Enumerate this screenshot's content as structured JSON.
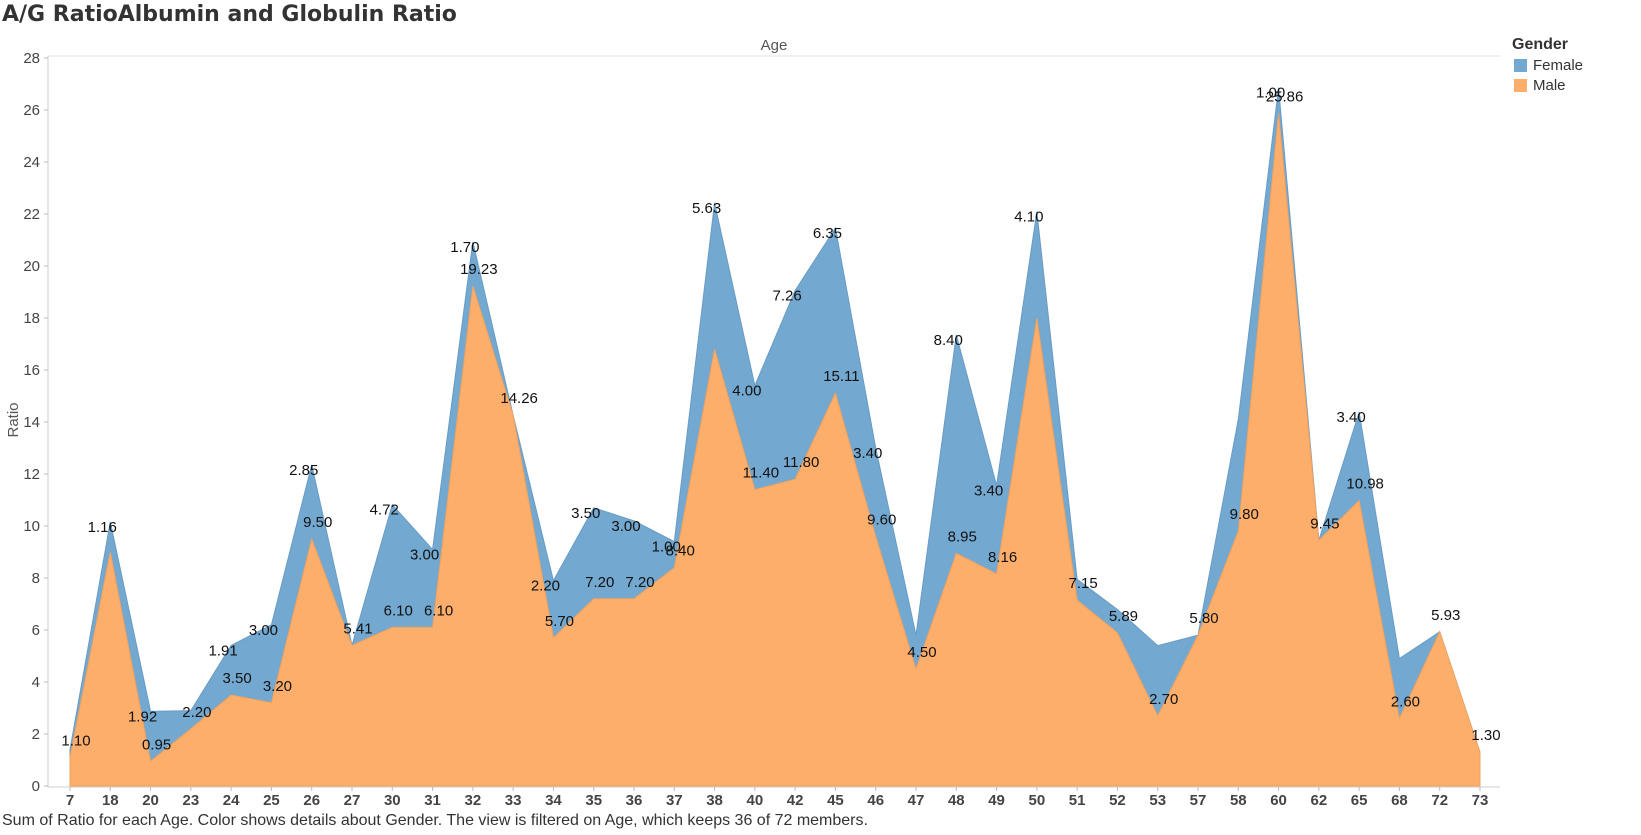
{
  "title": "A/G RatioAlbumin and Globulin Ratio",
  "caption": "Sum of Ratio for each Age.  Color shows details about Gender. The view is filtered on Age, which keeps 36 of 72 members.",
  "legend": {
    "title": "Gender",
    "items": [
      {
        "label": "Female",
        "color": "#73a8d0"
      },
      {
        "label": "Male",
        "color": "#fdae6b"
      }
    ]
  },
  "chart_data": {
    "type": "area",
    "stacked": true,
    "xlabel": "Age",
    "ylabel": "Ratio",
    "ylim": [
      0,
      28
    ],
    "yticks": [
      0,
      2,
      4,
      6,
      8,
      10,
      12,
      14,
      16,
      18,
      20,
      22,
      24,
      26,
      28
    ],
    "categories": [
      "7",
      "18",
      "20",
      "23",
      "24",
      "25",
      "26",
      "27",
      "30",
      "31",
      "32",
      "33",
      "34",
      "35",
      "36",
      "37",
      "38",
      "40",
      "42",
      "45",
      "46",
      "47",
      "48",
      "49",
      "50",
      "51",
      "52",
      "53",
      "57",
      "58",
      "60",
      "62",
      "65",
      "68",
      "72",
      "73"
    ],
    "series": [
      {
        "name": "Male",
        "values": [
          1.1,
          9.0,
          0.95,
          2.2,
          3.5,
          3.2,
          9.5,
          5.41,
          6.1,
          6.1,
          19.23,
          14.26,
          5.7,
          7.2,
          7.2,
          8.4,
          16.8,
          11.4,
          11.8,
          15.11,
          9.6,
          4.5,
          8.95,
          8.16,
          18.0,
          7.15,
          5.89,
          2.7,
          5.8,
          9.8,
          25.86,
          9.45,
          10.98,
          2.6,
          5.93,
          1.3
        ],
        "labels": [
          "1.10",
          "",
          "0.95",
          "2.20",
          "3.50",
          "3.20",
          "9.50",
          "5.41",
          "6.10",
          "6.10",
          "19.23",
          "14.26",
          "5.70",
          "7.20",
          "7.20",
          "8.40",
          "",
          "11.40",
          "11.80",
          "15.11",
          "9.60",
          "4.50",
          "8.95",
          "8.16",
          "",
          "7.15",
          "5.89",
          "2.70",
          "5.80",
          "9.80",
          "25.86",
          "9.45",
          "10.98",
          "2.60",
          "5.93",
          "1.30"
        ]
      },
      {
        "name": "Female",
        "values": [
          0.3,
          1.16,
          1.92,
          0.7,
          1.91,
          3.0,
          2.85,
          0,
          4.72,
          3.0,
          1.7,
          0,
          2.2,
          3.5,
          3.0,
          1.0,
          5.63,
          4.0,
          7.26,
          6.35,
          3.4,
          1.3,
          8.4,
          3.4,
          4.1,
          0.8,
          0.9,
          2.7,
          0,
          4.3,
          1.0,
          0,
          3.4,
          2.3,
          0,
          0
        ],
        "labels": [
          "",
          "1.16",
          "1.92",
          "",
          "1.91",
          "3.00",
          "2.85",
          "",
          "4.72",
          "3.00",
          "1.70",
          "",
          "2.20",
          "3.50",
          "3.00",
          "1.00",
          "5.63",
          "4.00",
          "7.26",
          "6.35",
          "3.40",
          "",
          "8.40",
          "3.40",
          "4.10",
          "",
          "",
          "",
          "",
          "",
          "1.00",
          "",
          "3.40",
          "",
          "",
          ""
        ]
      }
    ],
    "colors": {
      "Male": "#fdae6b",
      "Female": "#73a8d0"
    },
    "legend_position": "top-right",
    "grid": false
  }
}
